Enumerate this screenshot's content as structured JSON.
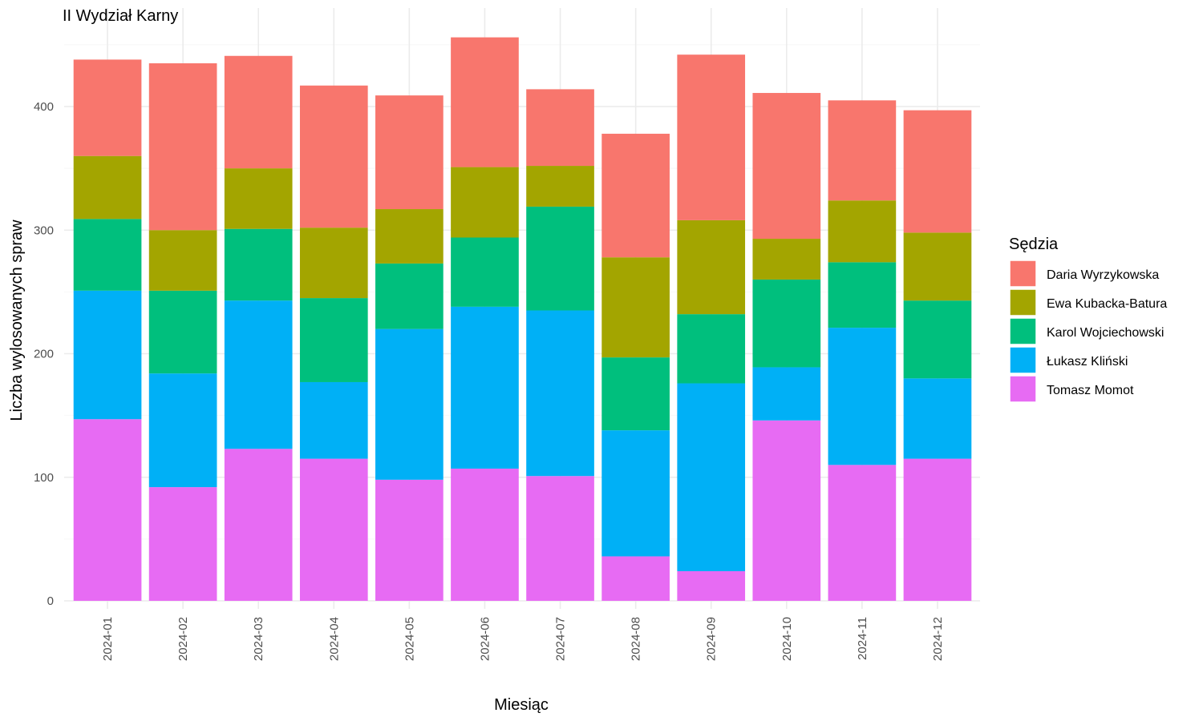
{
  "chart_data": {
    "type": "bar",
    "stacked": true,
    "title": "II Wydział Karny",
    "xlabel": "Miesiąc",
    "ylabel": "Liczba wylosowanych spraw",
    "ylim": [
      0,
      460
    ],
    "yticks": [
      0,
      100,
      200,
      300,
      400
    ],
    "grid": true,
    "legend_position": "right",
    "legend_title": "Sędzia",
    "categories": [
      "2024-01",
      "2024-02",
      "2024-03",
      "2024-04",
      "2024-05",
      "2024-06",
      "2024-07",
      "2024-08",
      "2024-09",
      "2024-10",
      "2024-11",
      "2024-12"
    ],
    "series": [
      {
        "name": "Tomasz Momot",
        "color": "#E76BF3",
        "values": [
          147,
          92,
          123,
          115,
          98,
          107,
          101,
          36,
          24,
          146,
          110,
          115
        ]
      },
      {
        "name": "Łukasz Kliński",
        "color": "#00B0F6",
        "values": [
          104,
          92,
          120,
          62,
          122,
          131,
          134,
          102,
          152,
          43,
          111,
          65
        ]
      },
      {
        "name": "Karol Wojciechowski",
        "color": "#00BF7D",
        "values": [
          58,
          67,
          58,
          68,
          53,
          56,
          84,
          59,
          56,
          71,
          53,
          63
        ]
      },
      {
        "name": "Ewa Kubacka-Batura",
        "color": "#A3A500",
        "values": [
          51,
          49,
          49,
          57,
          44,
          57,
          33,
          81,
          76,
          33,
          50,
          55
        ]
      },
      {
        "name": "Daria Wyrzykowska",
        "color": "#F8766D",
        "values": [
          78,
          135,
          91,
          115,
          92,
          105,
          62,
          100,
          134,
          118,
          81,
          99
        ]
      }
    ],
    "legend_order": [
      "Daria Wyrzykowska",
      "Ewa Kubacka-Batura",
      "Karol Wojciechowski",
      "Łukasz Kliński",
      "Tomasz Momot"
    ]
  }
}
